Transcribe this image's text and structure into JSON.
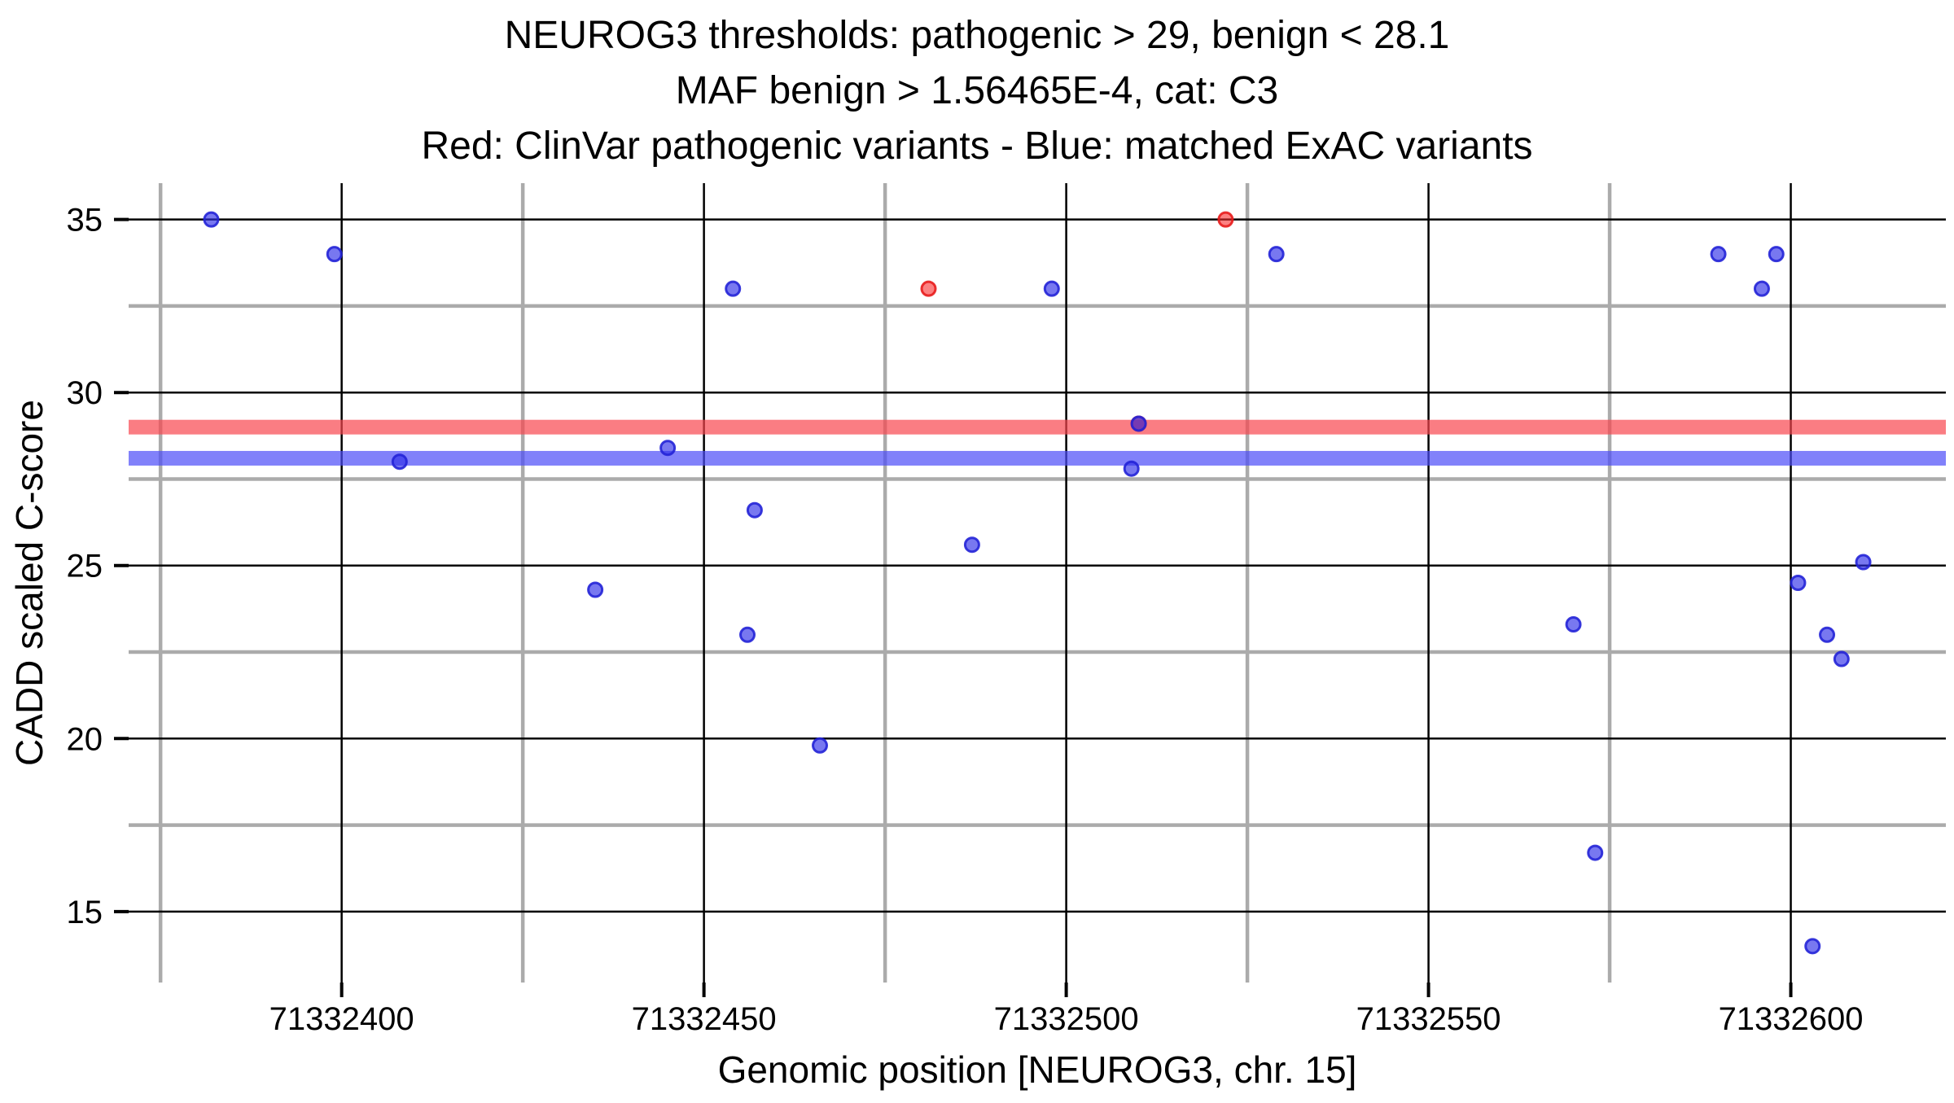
{
  "title": {
    "line1": "NEUROG3 thresholds: pathogenic > 29, benign < 28.1",
    "line2": "MAF benign > 1.56465E-4, cat: C3",
    "line3": "Red: ClinVar pathogenic variants - Blue: matched ExAC variants"
  },
  "chart_data": {
    "type": "scatter",
    "title": "NEUROG3 thresholds: pathogenic > 29, benign < 28.1 | MAF benign > 1.56465E-4, cat: C3 | Red: ClinVar pathogenic variants - Blue: matched ExAC variants",
    "xlabel": "Genomic position [NEUROG3, chr. 15]",
    "ylabel": "CADD scaled C-score",
    "xlim": [
      71332370.6,
      71332621.4
    ],
    "ylim": [
      12.95,
      36.05
    ],
    "x_ticks": [
      71332400,
      71332450,
      71332500,
      71332550,
      71332600
    ],
    "x_minor_ticks": [
      71332375,
      71332425,
      71332475,
      71332525,
      71332575
    ],
    "y_ticks": [
      15,
      20,
      25,
      30,
      35
    ],
    "y_minor_ticks": [
      17.5,
      22.5,
      27.5,
      32.5
    ],
    "grid": "major gridlines black, minor gridlines gray, white background, no panel border",
    "legend_position": "none",
    "hlines": [
      {
        "name": "pathogenic-threshold",
        "y": 29,
        "color": "rgba(248,70,78,0.70)",
        "meaning": "pathogenic > 29"
      },
      {
        "name": "benign-threshold",
        "y": 28.1,
        "color": "rgba(75,75,248,0.70)",
        "meaning": "benign < 28.1"
      }
    ],
    "series": [
      {
        "name": "ClinVar pathogenic variants",
        "color_name": "red",
        "fill": "rgba(250,45,45,0.60)",
        "stroke": "rgba(232,28,28,0.90)",
        "points": [
          [
            71332481,
            33.0
          ],
          [
            71332510,
            29.1
          ],
          [
            71332522,
            35.0
          ]
        ]
      },
      {
        "name": "matched ExAC variants",
        "color_name": "blue",
        "fill": "rgba(47,47,232,0.65)",
        "stroke": "rgba(35,35,215,0.90)",
        "points": [
          [
            71332382,
            35.0
          ],
          [
            71332399,
            34.0
          ],
          [
            71332408,
            28.0
          ],
          [
            71332435,
            24.3
          ],
          [
            71332445,
            28.4
          ],
          [
            71332454,
            33.0
          ],
          [
            71332456,
            23.0
          ],
          [
            71332457,
            26.6
          ],
          [
            71332466,
            19.8
          ],
          [
            71332487,
            25.6
          ],
          [
            71332498,
            33.0
          ],
          [
            71332509,
            27.8
          ],
          [
            71332510,
            29.1
          ],
          [
            71332529,
            34.0
          ],
          [
            71332570,
            23.3
          ],
          [
            71332573,
            16.7
          ],
          [
            71332590,
            34.0
          ],
          [
            71332596,
            33.0
          ],
          [
            71332598,
            34.0
          ],
          [
            71332601,
            24.5
          ],
          [
            71332603,
            14.0
          ],
          [
            71332605,
            23.0
          ],
          [
            71332607,
            22.3
          ],
          [
            71332610,
            25.1
          ]
        ]
      }
    ]
  },
  "colors": {
    "background": "#FFFFFF",
    "grid_major": "#000000",
    "grid_minor": "#ABABAB",
    "tick_mark": "#000000",
    "text": "#000000"
  }
}
